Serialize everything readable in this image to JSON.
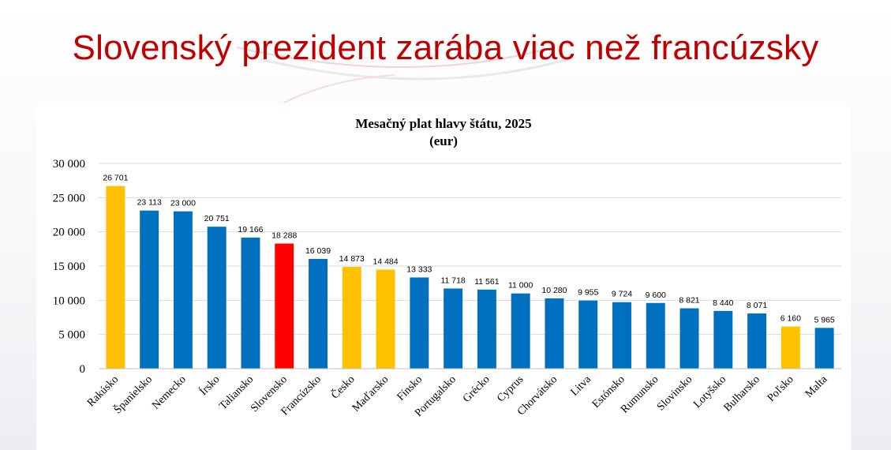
{
  "slide": {
    "title": "Slovenský prezident zarába viac než francúzsky"
  },
  "chart_data": {
    "type": "bar",
    "title": "Mesačný plat hlavy štátu, 2025",
    "subtitle": "(eur)",
    "xlabel": "",
    "ylabel": "",
    "ylim": [
      0,
      30000
    ],
    "grid": true,
    "legend": "none",
    "y_ticks": [
      0,
      5000,
      10000,
      15000,
      20000,
      25000,
      30000
    ],
    "y_tick_labels": [
      "0",
      "5 000",
      "10 000",
      "15 000",
      "20 000",
      "25 000",
      "30 000"
    ],
    "categories": [
      "Rakúsko",
      "Španielsko",
      "Nemecko",
      "Írsko",
      "Taliansko",
      "Slovensko",
      "Francúzsko",
      "Česko",
      "Maďarsko",
      "Fínsko",
      "Portugalsko",
      "Grécko",
      "Cyprus",
      "Chorvátsko",
      "Litva",
      "Estónsko",
      "Rumunsko",
      "Slovinsko",
      "Lotyšsko",
      "Bulharsko",
      "Poľsko",
      "Malta"
    ],
    "values": [
      26701,
      23113,
      23000,
      20751,
      19166,
      18288,
      16039,
      14873,
      14484,
      13333,
      11718,
      11561,
      11000,
      10280,
      9955,
      9724,
      9600,
      8821,
      8440,
      8071,
      6160,
      5965
    ],
    "data_labels": [
      "26 701",
      "23 113",
      "23 000",
      "20 751",
      "19 166",
      "18 288",
      "16 039",
      "14 873",
      "14 484",
      "13 333",
      "11 718",
      "11 561",
      "11 000",
      "10 280",
      "9 955",
      "9 724",
      "9 600",
      "8 821",
      "8 440",
      "8 071",
      "6 160",
      "5 965"
    ],
    "bar_colors": [
      "#ffc000",
      "#0070c0",
      "#0070c0",
      "#0070c0",
      "#0070c0",
      "#ff0000",
      "#0070c0",
      "#ffc000",
      "#ffc000",
      "#0070c0",
      "#0070c0",
      "#0070c0",
      "#0070c0",
      "#0070c0",
      "#0070c0",
      "#0070c0",
      "#0070c0",
      "#0070c0",
      "#0070c0",
      "#0070c0",
      "#ffc000",
      "#0070c0"
    ]
  }
}
